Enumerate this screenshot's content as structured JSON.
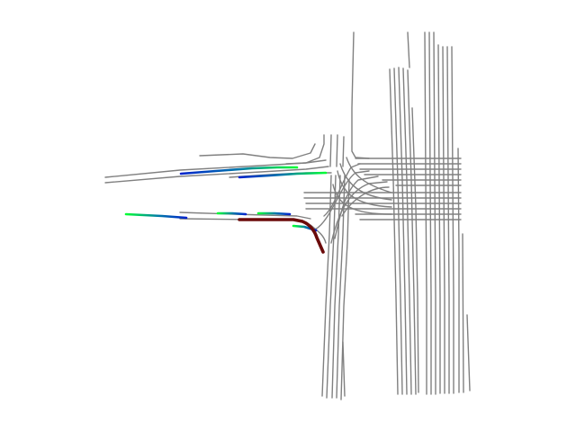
{
  "map": {
    "background": "#ffffff",
    "lane_color": "#808080",
    "ego_color": "#6b0a0a",
    "trajectory_gradient": [
      "#00ff33",
      "#0066cc",
      "#0022cc"
    ],
    "agents_visible": 7
  }
}
